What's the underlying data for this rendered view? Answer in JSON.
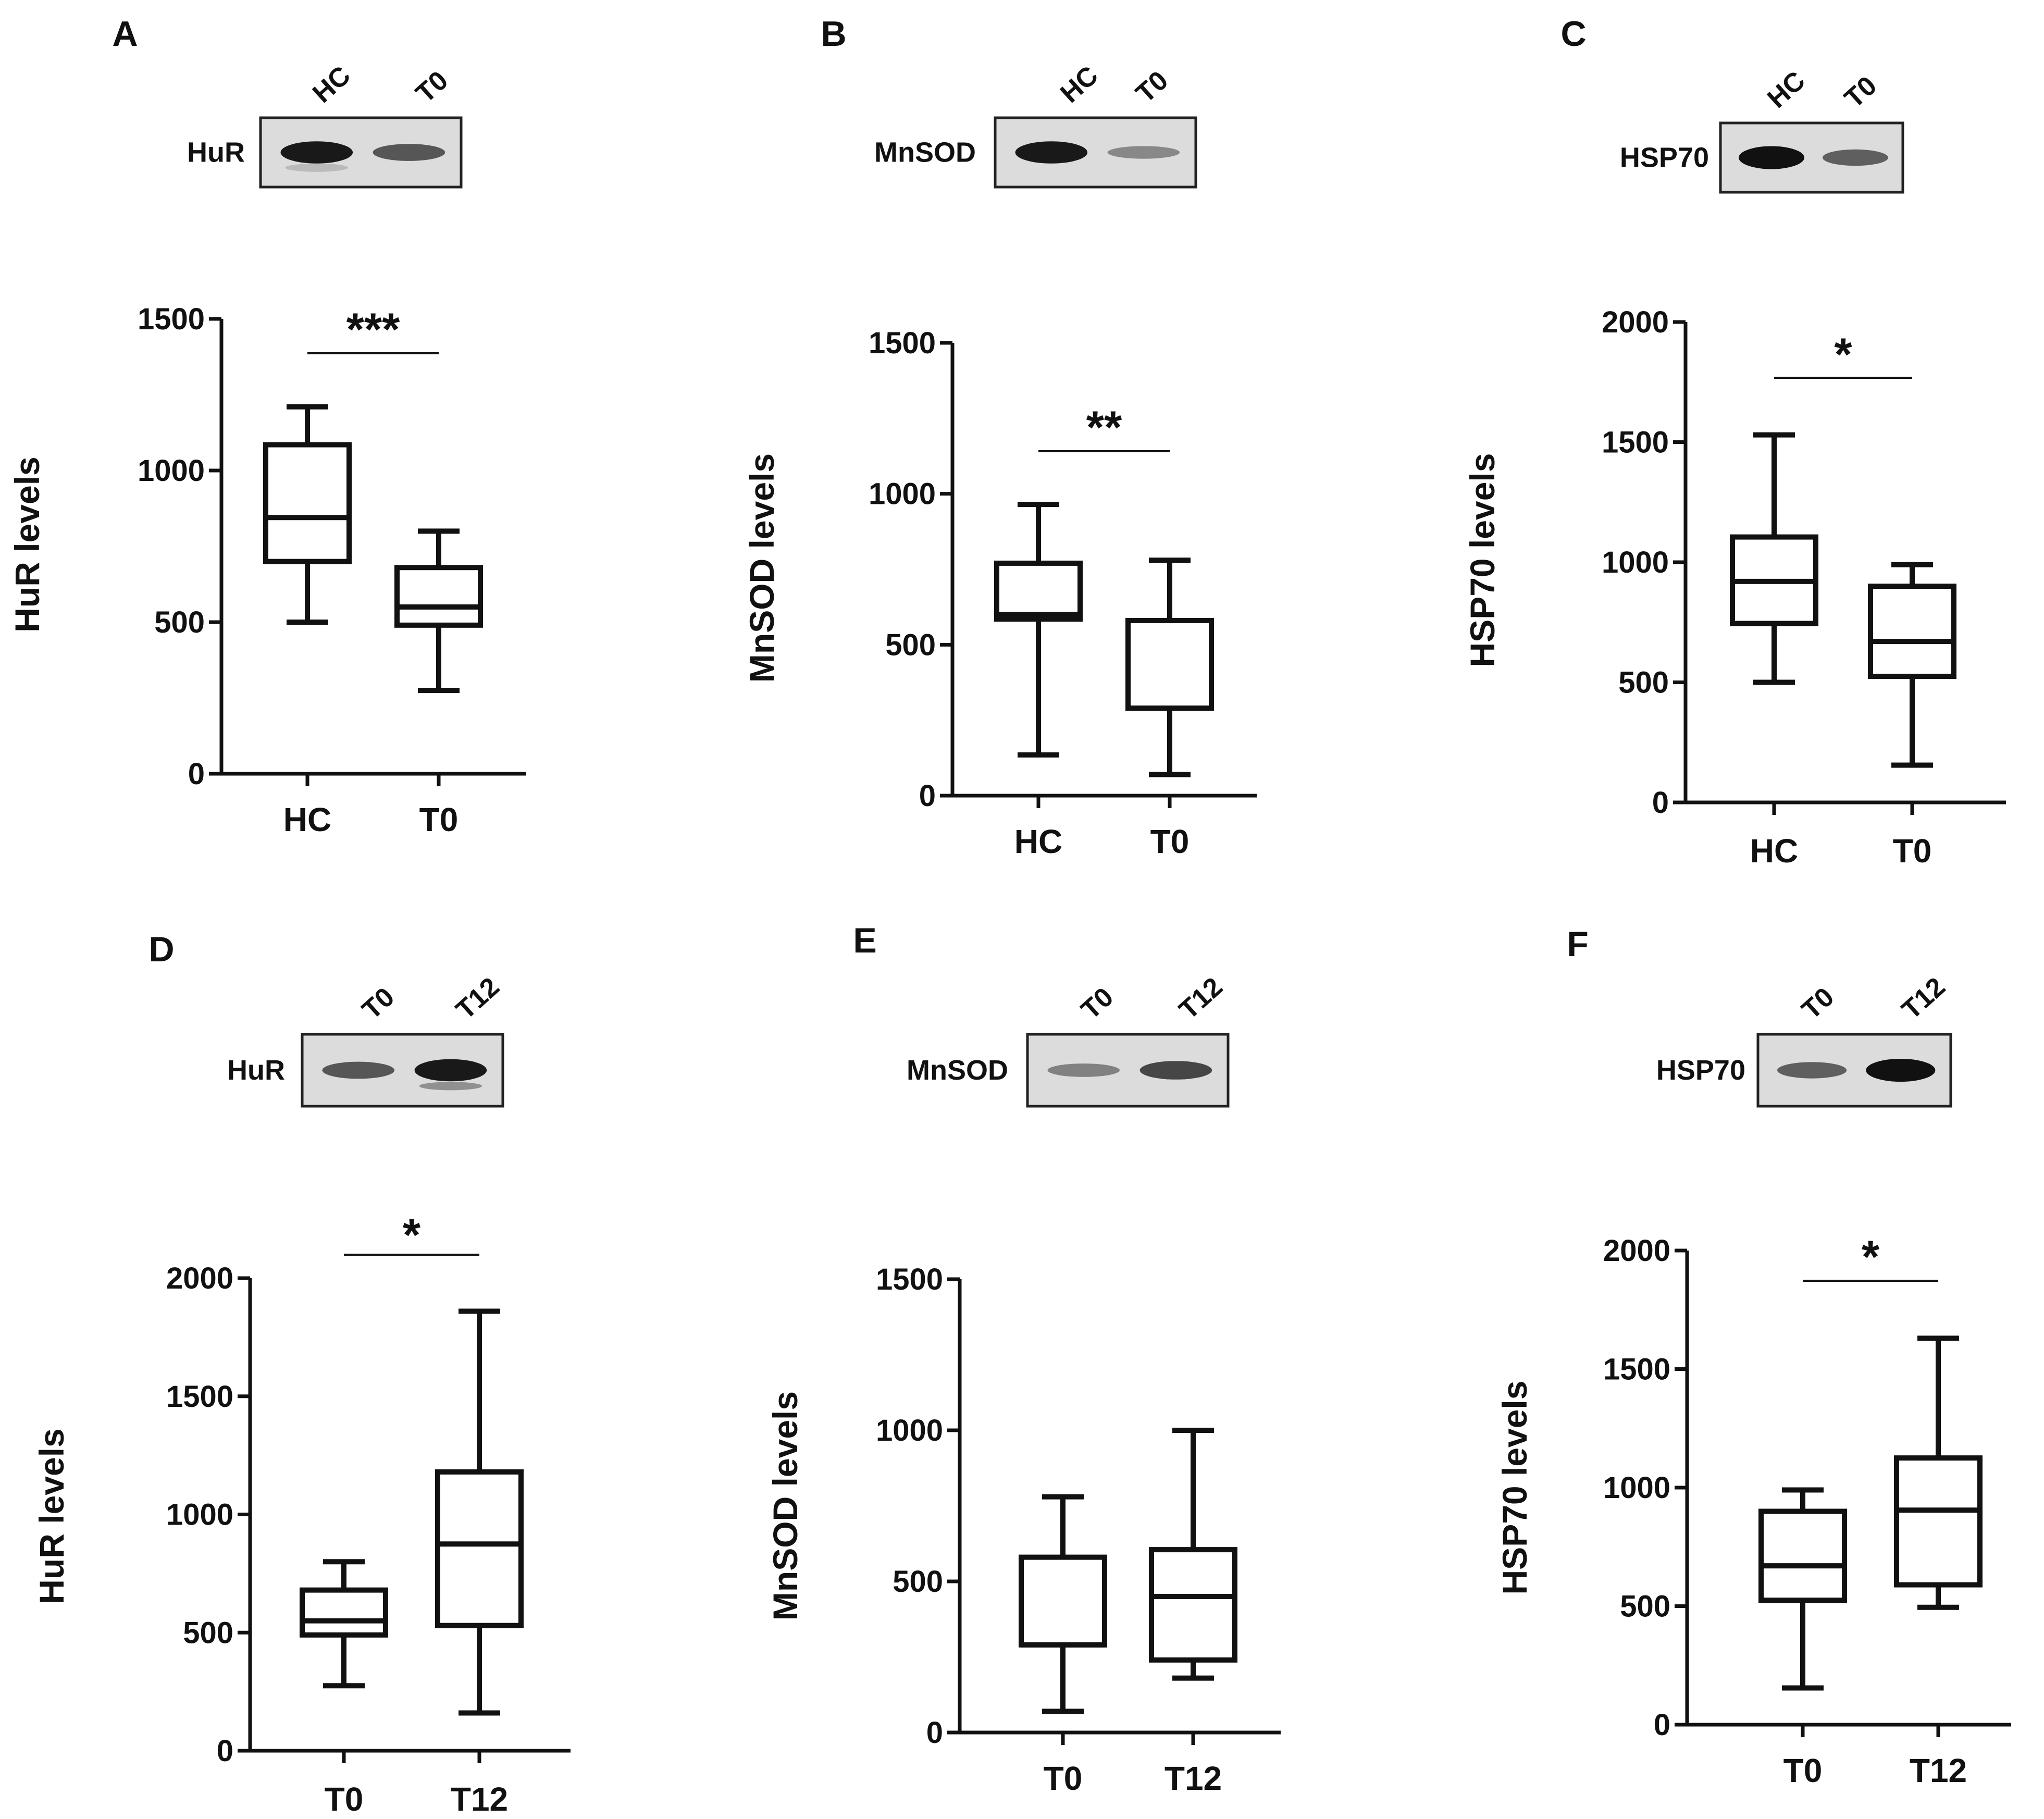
{
  "chart_data": [
    {
      "panel": "A",
      "type": "box",
      "protein": "HuR",
      "blot_lanes": [
        "HC",
        "T0"
      ],
      "ylabel": "HuR levels",
      "ylim": [
        0,
        1500
      ],
      "yticks": [
        "0",
        "500",
        "1000",
        "1500"
      ],
      "categories": [
        "HC",
        "T0"
      ],
      "boxes": [
        {
          "name": "HC",
          "min": 500,
          "q1": 700,
          "median": 845,
          "q3": 1085,
          "max": 1210
        },
        {
          "name": "T0",
          "min": 275,
          "q1": 490,
          "median": 550,
          "q3": 680,
          "max": 800
        }
      ],
      "significance": "***"
    },
    {
      "panel": "B",
      "type": "box",
      "protein": "MnSOD",
      "blot_lanes": [
        "HC",
        "T0"
      ],
      "ylabel": "MnSOD levels",
      "ylim": [
        0,
        1500
      ],
      "yticks": [
        "0",
        "500",
        "1000",
        "1500"
      ],
      "categories": [
        "HC",
        "T0"
      ],
      "boxes": [
        {
          "name": "HC",
          "min": 135,
          "q1": 585,
          "median": 600,
          "q3": 770,
          "max": 965
        },
        {
          "name": "T0",
          "min": 70,
          "q1": 290,
          "median": 290,
          "q3": 580,
          "max": 780
        }
      ],
      "significance": "**"
    },
    {
      "panel": "C",
      "type": "box",
      "protein": "HSP70",
      "blot_lanes": [
        "HC",
        "T0"
      ],
      "ylabel": "HSP70 levels",
      "ylim": [
        0,
        2000
      ],
      "yticks": [
        "0",
        "500",
        "1000",
        "1500",
        "2000"
      ],
      "categories": [
        "HC",
        "T0"
      ],
      "boxes": [
        {
          "name": "HC",
          "min": 500,
          "q1": 745,
          "median": 920,
          "q3": 1105,
          "max": 1530
        },
        {
          "name": "T0",
          "min": 155,
          "q1": 525,
          "median": 670,
          "q3": 900,
          "max": 990
        }
      ],
      "significance": "*"
    },
    {
      "panel": "D",
      "type": "box",
      "protein": "HuR",
      "blot_lanes": [
        "T0",
        "T12"
      ],
      "ylabel": "HuR levels",
      "ylim": [
        0,
        2000
      ],
      "yticks": [
        "0",
        "500",
        "1000",
        "1500",
        "2000"
      ],
      "categories": [
        "T0",
        "T12"
      ],
      "boxes": [
        {
          "name": "T0",
          "min": 275,
          "q1": 490,
          "median": 550,
          "q3": 680,
          "max": 800
        },
        {
          "name": "T12",
          "min": 160,
          "q1": 530,
          "median": 875,
          "q3": 1180,
          "max": 1860
        }
      ],
      "significance": "*"
    },
    {
      "panel": "E",
      "type": "box",
      "protein": "MnSOD",
      "blot_lanes": [
        "T0",
        "T12"
      ],
      "ylabel": "MnSOD levels",
      "ylim": [
        0,
        1500
      ],
      "yticks": [
        "0",
        "500",
        "1000",
        "1500"
      ],
      "categories": [
        "T0",
        "T12"
      ],
      "boxes": [
        {
          "name": "T0",
          "min": 70,
          "q1": 290,
          "median": 290,
          "q3": 580,
          "max": 780
        },
        {
          "name": "T12",
          "min": 180,
          "q1": 240,
          "median": 450,
          "q3": 605,
          "max": 1000
        }
      ],
      "significance": ""
    },
    {
      "panel": "F",
      "type": "box",
      "protein": "HSP70",
      "blot_lanes": [
        "T0",
        "T12"
      ],
      "ylabel": "HSP70 levels",
      "ylim": [
        0,
        2000
      ],
      "yticks": [
        "0",
        "500",
        "1000",
        "1500",
        "2000"
      ],
      "categories": [
        "T0",
        "T12"
      ],
      "boxes": [
        {
          "name": "T0",
          "min": 155,
          "q1": 525,
          "median": 670,
          "q3": 900,
          "max": 990
        },
        {
          "name": "T12",
          "min": 495,
          "q1": 590,
          "median": 905,
          "q3": 1125,
          "max": 1630
        }
      ],
      "significance": "*"
    }
  ],
  "blots": {
    "A": {
      "bands": [
        0.95,
        0.6
      ],
      "lower_bands": [
        0.2,
        0.0
      ]
    },
    "B": {
      "bands": [
        0.95,
        0.3
      ],
      "lower_bands": [
        0.0,
        0.0
      ]
    },
    "C": {
      "bands": [
        1.0,
        0.55
      ],
      "lower_bands": [
        0.0,
        0.0
      ]
    },
    "D": {
      "bands": [
        0.6,
        0.95
      ],
      "lower_bands": [
        0.0,
        0.45
      ]
    },
    "E": {
      "bands": [
        0.35,
        0.7
      ],
      "lower_bands": [
        0.0,
        0.0
      ]
    },
    "F": {
      "bands": [
        0.55,
        1.0
      ],
      "lower_bands": [
        0.0,
        0.0
      ]
    }
  }
}
